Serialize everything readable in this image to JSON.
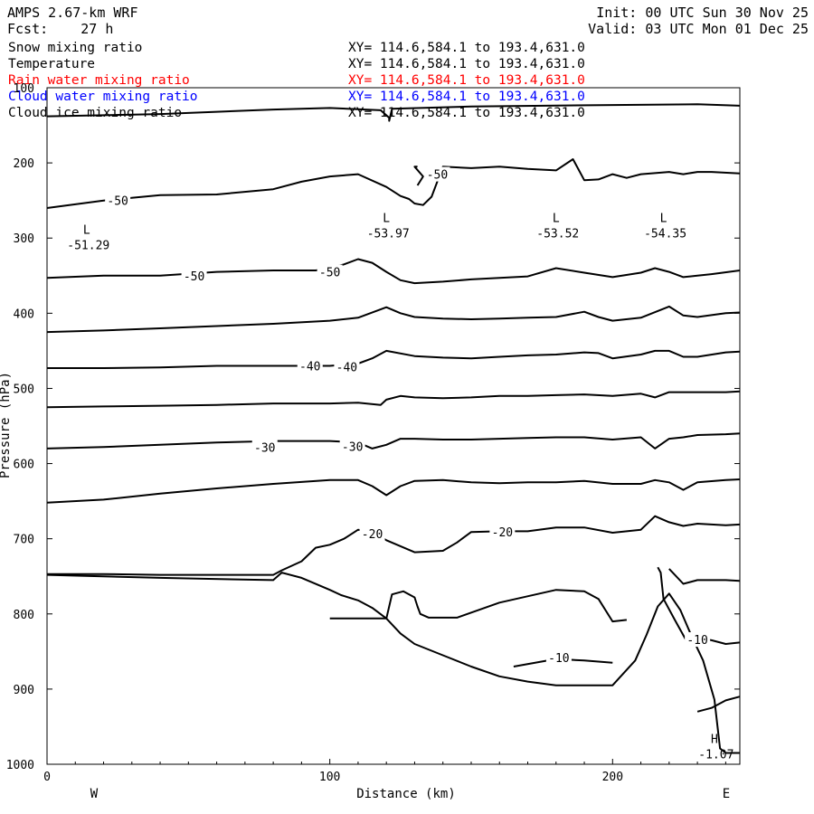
{
  "header": {
    "model": "AMPS 2.67-km WRF",
    "forecast": "Fcst:    27 h",
    "init": "Init: 00 UTC Sun 30 Nov 25",
    "valid": "Valid: 03 UTC Mon 01 Dec 25"
  },
  "fields": [
    {
      "name": "Snow mixing ratio",
      "xy": "XY= 114.6,584.1 to 193.4,631.0",
      "color": "#000000"
    },
    {
      "name": "Temperature",
      "xy": "XY= 114.6,584.1 to 193.4,631.0",
      "color": "#000000"
    },
    {
      "name": "Rain water mixing ratio",
      "xy": "XY= 114.6,584.1 to 193.4,631.0",
      "color": "#ff0000"
    },
    {
      "name": "Cloud water mixing ratio",
      "xy": "XY= 114.6,584.1 to 193.4,631.0",
      "color": "#0000ff"
    },
    {
      "name": "Cloud ice mixing ratio",
      "xy": "XY= 114.6,584.1 to 193.4,631.0",
      "color": "#000000"
    }
  ],
  "chart_data": {
    "type": "line",
    "title": "AMPS 2.67-km WRF",
    "xlabel": "Distance (km)",
    "ylabel": "Pressure (hPa)",
    "xlim": [
      0,
      245
    ],
    "ylim": [
      1000,
      100
    ],
    "x_ticks": [
      0,
      100,
      200
    ],
    "y_ticks": [
      100,
      200,
      300,
      400,
      500,
      600,
      700,
      800,
      900,
      1000
    ],
    "x_end_labels": {
      "left": "W",
      "right": "E"
    },
    "contour_labels": [
      {
        "text": "-50",
        "x": 25,
        "y": 250
      },
      {
        "text": "-50",
        "x": 138,
        "y": 215
      },
      {
        "text": "-50",
        "x": 52,
        "y": 350
      },
      {
        "text": "-50",
        "x": 100,
        "y": 345
      },
      {
        "text": "-40",
        "x": 93,
        "y": 470
      },
      {
        "text": "-40",
        "x": 106,
        "y": 471
      },
      {
        "text": "-30",
        "x": 77,
        "y": 578
      },
      {
        "text": "-30",
        "x": 108,
        "y": 577
      },
      {
        "text": "-20",
        "x": 115,
        "y": 693
      },
      {
        "text": "-20",
        "x": 161,
        "y": 691
      },
      {
        "text": "-10",
        "x": 181,
        "y": 858
      },
      {
        "text": "-10",
        "x": 230,
        "y": 834
      }
    ],
    "extrema": [
      {
        "kind": "L",
        "value": "-51.29",
        "x": 14,
        "y": 303
      },
      {
        "kind": "L",
        "value": "-53.97",
        "x": 120,
        "y": 287
      },
      {
        "kind": "L",
        "value": "-53.52",
        "x": 180,
        "y": 287
      },
      {
        "kind": "L",
        "value": "-54.35",
        "x": 218,
        "y": 287
      },
      {
        "kind": "H",
        "value": "-1.07",
        "x": 236,
        "y": 980
      }
    ],
    "contours": [
      {
        "x": [
          0,
          40,
          80,
          100,
          118,
          121,
          121,
          122,
          150,
          200,
          230,
          245
        ],
        "y": [
          138,
          135,
          129,
          127,
          130,
          140,
          144,
          128,
          125,
          123,
          122,
          124
        ]
      },
      {
        "x": [
          0,
          20,
          40,
          60,
          80,
          90,
          100,
          110,
          120,
          125,
          128,
          130,
          133,
          136,
          140,
          150,
          160,
          170,
          180,
          186,
          190,
          195,
          200,
          205,
          210,
          220,
          225,
          230,
          235,
          245
        ],
        "y": [
          260,
          250,
          243,
          242,
          235,
          225,
          218,
          215,
          232,
          244,
          248,
          254,
          256,
          245,
          205,
          207,
          205,
          208,
          210,
          195,
          223,
          222,
          215,
          220,
          215,
          212,
          215,
          212,
          212,
          214
        ]
      },
      {
        "x": [
          0,
          20,
          40,
          60,
          80,
          95,
          100,
          105,
          110,
          115,
          120,
          125,
          130,
          140,
          150,
          160,
          170,
          180,
          190,
          200,
          210,
          215,
          220,
          225,
          230,
          235,
          245
        ],
        "y": [
          353,
          350,
          350,
          345,
          343,
          343,
          340,
          335,
          328,
          333,
          345,
          356,
          360,
          358,
          355,
          353,
          351,
          340,
          346,
          352,
          346,
          340,
          345,
          352,
          350,
          348,
          343
        ]
      },
      {
        "x": [
          0,
          20,
          40,
          60,
          80,
          100,
          110,
          120,
          125,
          130,
          140,
          150,
          160,
          170,
          180,
          190,
          195,
          200,
          210,
          220,
          225,
          230,
          240,
          245
        ],
        "y": [
          425,
          423,
          420,
          417,
          414,
          410,
          406,
          392,
          400,
          405,
          407,
          408,
          407,
          406,
          405,
          398,
          405,
          410,
          406,
          391,
          403,
          405,
          400,
          399
        ]
      },
      {
        "x": [
          0,
          20,
          40,
          60,
          80,
          100,
          110,
          115,
          120,
          130,
          140,
          150,
          160,
          170,
          180,
          190,
          195,
          200,
          210,
          215,
          220,
          225,
          230,
          240,
          245
        ],
        "y": [
          473,
          473,
          472,
          470,
          470,
          470,
          467,
          460,
          450,
          457,
          459,
          460,
          458,
          456,
          455,
          452,
          453,
          460,
          455,
          450,
          450,
          458,
          458,
          452,
          451
        ]
      },
      {
        "x": [
          0,
          20,
          40,
          60,
          80,
          100,
          110,
          118,
          120,
          125,
          130,
          140,
          150,
          160,
          170,
          180,
          190,
          200,
          210,
          215,
          220,
          230,
          240,
          245
        ],
        "y": [
          525,
          524,
          523,
          522,
          520,
          520,
          519,
          522,
          515,
          510,
          512,
          513,
          512,
          510,
          510,
          509,
          508,
          510,
          507,
          512,
          505,
          505,
          505,
          504
        ]
      },
      {
        "x": [
          0,
          20,
          40,
          60,
          80,
          100,
          110,
          115,
          120,
          125,
          130,
          140,
          150,
          160,
          170,
          180,
          190,
          200,
          210,
          215,
          220,
          225,
          230,
          240,
          245
        ],
        "y": [
          580,
          578,
          575,
          572,
          570,
          570,
          572,
          580,
          575,
          567,
          567,
          568,
          568,
          567,
          566,
          565,
          565,
          568,
          565,
          580,
          567,
          565,
          562,
          561,
          560
        ]
      },
      {
        "x": [
          0,
          20,
          40,
          60,
          80,
          100,
          110,
          115,
          120,
          125,
          130,
          140,
          150,
          160,
          170,
          180,
          190,
          200,
          210,
          215,
          220,
          225,
          230,
          240,
          245
        ],
        "y": [
          652,
          648,
          640,
          633,
          627,
          622,
          622,
          630,
          642,
          630,
          623,
          622,
          625,
          626,
          625,
          625,
          623,
          627,
          627,
          622,
          625,
          635,
          625,
          622,
          621
        ]
      },
      {
        "x": [
          0,
          20,
          40,
          60,
          80,
          83,
          90,
          95,
          100,
          105,
          110,
          115,
          120,
          130,
          140,
          145,
          150,
          160,
          170,
          180,
          190,
          200,
          210,
          215,
          220,
          225,
          230,
          240,
          245
        ],
        "y": [
          747,
          747,
          748,
          748,
          748,
          742,
          730,
          712,
          708,
          700,
          688,
          690,
          702,
          718,
          716,
          705,
          691,
          690,
          690,
          685,
          685,
          692,
          688,
          670,
          678,
          683,
          680,
          682,
          681
        ]
      },
      {
        "x": [
          0,
          40,
          80,
          83,
          90,
          100,
          104,
          110,
          115,
          120,
          125,
          130,
          140,
          150,
          160,
          170,
          180,
          190,
          200,
          208,
          212,
          216,
          220,
          224,
          228,
          232,
          236,
          238,
          240,
          245
        ],
        "y": [
          748,
          752,
          755,
          745,
          752,
          768,
          775,
          782,
          792,
          806,
          826,
          840,
          855,
          870,
          883,
          890,
          895,
          895,
          895,
          862,
          828,
          790,
          773,
          795,
          830,
          862,
          914,
          979,
          985,
          985
        ]
      },
      {
        "x": [
          100,
          120,
          121,
          122,
          126,
          130,
          131,
          132,
          135,
          145,
          160,
          180,
          190,
          195,
          200,
          205
        ],
        "y": [
          806,
          806,
          790,
          774,
          770,
          778,
          790,
          800,
          805,
          805,
          785,
          768,
          770,
          780,
          810,
          808
        ]
      },
      {
        "x": [
          165,
          180,
          190,
          200
        ],
        "y": [
          870,
          860,
          862,
          865
        ]
      },
      {
        "x": [
          216,
          217,
          218,
          222,
          226,
          230,
          235,
          240,
          245
        ],
        "y": [
          738,
          745,
          780,
          808,
          835,
          832,
          835,
          840,
          838
        ]
      },
      {
        "x": [
          220,
          225,
          230,
          240,
          245
        ],
        "y": [
          740,
          760,
          755,
          755,
          756
        ]
      },
      {
        "x": [
          230,
          235,
          240,
          245
        ],
        "y": [
          930,
          925,
          915,
          910
        ]
      },
      {
        "x": [
          131,
          130,
          133,
          131
        ],
        "y": [
          205,
          205,
          218,
          230
        ]
      }
    ]
  }
}
